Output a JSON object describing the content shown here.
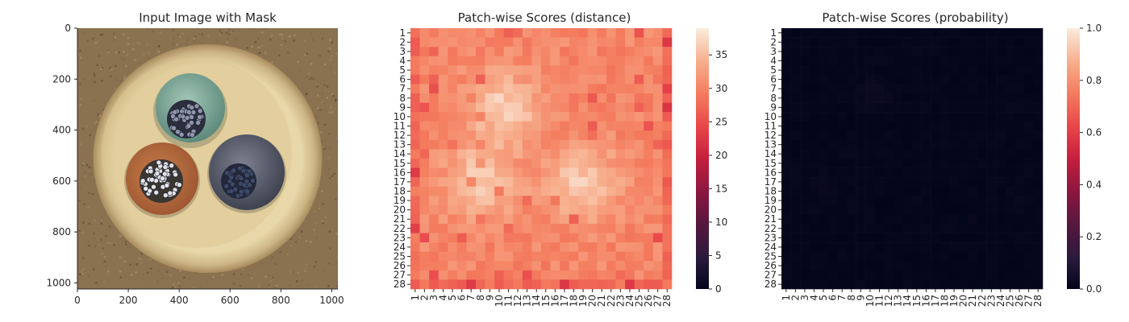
{
  "chart_data": [
    {
      "type": "image",
      "title": "Input Image with Mask",
      "xlim": [
        0,
        1024
      ],
      "ylim": [
        1024,
        0
      ],
      "xticks": [
        0,
        200,
        400,
        600,
        800,
        1000
      ],
      "yticks": [
        0,
        200,
        400,
        600,
        800,
        1000
      ],
      "image": {
        "background": "#8a7250",
        "rim_color": "#e2cf9f",
        "cables": [
          {
            "name": "green",
            "color": "#7fa89a",
            "cx": 445,
            "cy": 305,
            "r": 230
          },
          {
            "name": "orange",
            "color": "#b86c3c",
            "cx": 390,
            "cy": 590,
            "r": 215
          },
          {
            "name": "gray",
            "color": "#555a68",
            "cx": 655,
            "cy": 615,
            "r": 220
          }
        ],
        "anomaly_mask": "none visible"
      }
    },
    {
      "type": "heatmap",
      "title": "Patch-wise Scores (distance)",
      "xlabel": "",
      "ylabel": "",
      "x_tick_labels": [
        "1",
        "2",
        "3",
        "4",
        "5",
        "6",
        "7",
        "8",
        "9",
        "10",
        "11",
        "12",
        "13",
        "14",
        "15",
        "16",
        "17",
        "18",
        "19",
        "20",
        "21",
        "22",
        "23",
        "24",
        "25",
        "26",
        "27",
        "28"
      ],
      "y_tick_labels": [
        "1",
        "2",
        "3",
        "4",
        "5",
        "6",
        "7",
        "8",
        "9",
        "10",
        "11",
        "12",
        "13",
        "14",
        "15",
        "16",
        "17",
        "18",
        "19",
        "20",
        "21",
        "22",
        "23",
        "24",
        "25",
        "26",
        "27",
        "28"
      ],
      "colormap": "rocket",
      "vmin": 0,
      "vmax": 39,
      "colorbar_ticks": [
        "0",
        "5",
        "10",
        "15",
        "20",
        "25",
        "30",
        "35"
      ],
      "value_summary": "background approx 28-31; cable regions approx 32-38; hot spots centered near (col 10, row 9), (col 8, row 17), (col 19, row 17)"
    },
    {
      "type": "heatmap",
      "title": "Patch-wise Scores (probability)",
      "xlabel": "",
      "ylabel": "",
      "x_tick_labels": [
        "1",
        "2",
        "3",
        "4",
        "5",
        "6",
        "7",
        "8",
        "9",
        "10",
        "11",
        "12",
        "13",
        "14",
        "15",
        "16",
        "17",
        "18",
        "19",
        "20",
        "21",
        "22",
        "23",
        "24",
        "25",
        "26",
        "27",
        "28"
      ],
      "y_tick_labels": [
        "1",
        "2",
        "3",
        "4",
        "5",
        "6",
        "7",
        "8",
        "9",
        "10",
        "11",
        "12",
        "13",
        "14",
        "15",
        "16",
        "17",
        "18",
        "19",
        "20",
        "21",
        "22",
        "23",
        "24",
        "25",
        "26",
        "27",
        "28"
      ],
      "colormap": "rocket",
      "vmin": 0.0,
      "vmax": 1.0,
      "colorbar_ticks": [
        "0.0",
        "0.2",
        "0.4",
        "0.6",
        "0.8",
        "1.0"
      ],
      "value_summary": "all patches near 0.0 (max approx 0.03 around col 10-11, rows 6-9)"
    }
  ]
}
